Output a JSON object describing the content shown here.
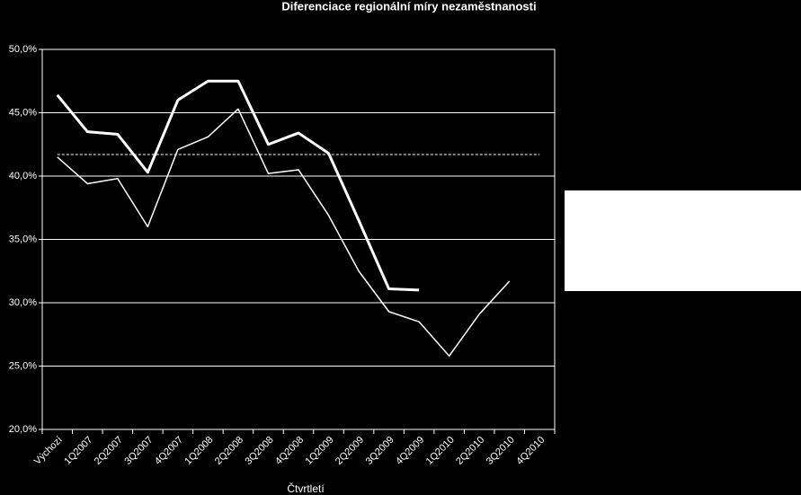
{
  "chart_data": {
    "type": "line",
    "title": "Diferenciace regionální míry nezaměstnanosti",
    "x_label": "Čtvrtletí",
    "categories": [
      "Výchozí",
      "1Q2007",
      "2Q2007",
      "3Q2007",
      "4Q2007",
      "1Q2008",
      "2Q2008",
      "3Q2008",
      "4Q2008",
      "1Q2009",
      "2Q2009",
      "3Q2009",
      "4Q2009",
      "1Q2010",
      "2Q2010",
      "3Q2010",
      "4Q2010"
    ],
    "series": [
      {
        "color": "#ffffff",
        "line_width": 3,
        "values": [
          46.4,
          43.5,
          43.3,
          40.3,
          46.0,
          47.5,
          47.5,
          42.5,
          43.4,
          41.8,
          36.5,
          31.1,
          31.0,
          null,
          null,
          null,
          null
        ]
      },
      {
        "color": "#ffffff",
        "line_width": 1.5,
        "values": [
          41.5,
          39.4,
          39.8,
          36.0,
          42.1,
          43.1,
          45.3,
          40.2,
          40.5,
          36.9,
          32.5,
          29.3,
          28.5,
          25.8,
          29.1,
          31.7,
          null
        ]
      }
    ],
    "reference_line": 41.7,
    "ylim": [
      20,
      50
    ],
    "yticks": [
      {
        "value": 20,
        "label": "20,0%"
      },
      {
        "value": 25,
        "label": "25,0%"
      },
      {
        "value": 30,
        "label": "30,0%"
      },
      {
        "value": 35,
        "label": "35,0%"
      },
      {
        "value": 40,
        "label": "40,0%"
      },
      {
        "value": 45,
        "label": "45,0%"
      },
      {
        "value": 50,
        "label": "50,0%"
      }
    ],
    "grid": true
  }
}
